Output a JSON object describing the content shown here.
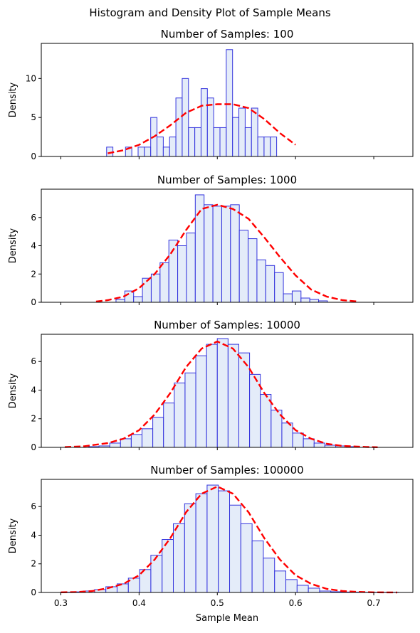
{
  "figure": {
    "suptitle": "Histogram and Density Plot of Sample Means"
  },
  "colors": {
    "bar_fill": "#dbe6f7",
    "bar_edge": "#3333dd",
    "density": "#ff0000",
    "axis": "#000000"
  },
  "chart_data": [
    {
      "type": "bar",
      "title": "Number of Samples: 100",
      "ylabel": "Density",
      "xlabel": "",
      "xlim": [
        0.275,
        0.75
      ],
      "ylim": [
        0,
        14.5
      ],
      "xticks": [
        0.3,
        0.4,
        0.5,
        0.6,
        0.7
      ],
      "xtick_labels_visible": false,
      "yticks": [
        0,
        5,
        10
      ],
      "ytick_labels": [
        "0",
        "5",
        "10"
      ],
      "bin_start": 0.3585,
      "bin_width": 0.00805,
      "values": [
        1.2,
        0,
        0,
        1.2,
        0,
        1.2,
        1.2,
        5.0,
        2.5,
        1.2,
        2.5,
        7.5,
        10.0,
        3.7,
        3.7,
        8.7,
        7.5,
        3.7,
        3.7,
        13.7,
        5.0,
        6.2,
        3.7,
        6.2,
        2.5,
        2.5,
        2.5
      ],
      "density": {
        "style": "dashed",
        "x": [
          0.36,
          0.38,
          0.4,
          0.42,
          0.44,
          0.46,
          0.48,
          0.5,
          0.52,
          0.54,
          0.56,
          0.58,
          0.6
        ],
        "y": [
          0.4,
          0.8,
          1.5,
          2.6,
          4.0,
          5.6,
          6.5,
          6.7,
          6.7,
          6.2,
          4.8,
          3.0,
          1.5
        ]
      }
    },
    {
      "type": "bar",
      "title": "Number of Samples: 1000",
      "ylabel": "Density",
      "xlabel": "",
      "xlim": [
        0.275,
        0.75
      ],
      "ylim": [
        0,
        8.0
      ],
      "xticks": [
        0.3,
        0.4,
        0.5,
        0.6,
        0.7
      ],
      "xtick_labels_visible": false,
      "yticks": [
        0,
        2,
        4,
        6
      ],
      "ytick_labels": [
        "0",
        "2",
        "4",
        "6"
      ],
      "bin_start": 0.3705,
      "bin_width": 0.01126,
      "values": [
        0.2,
        0.8,
        0.4,
        1.7,
        2.0,
        2.8,
        4.4,
        4.0,
        4.9,
        7.6,
        6.9,
        6.8,
        6.8,
        6.9,
        5.1,
        4.5,
        3.0,
        2.6,
        2.1,
        0.6,
        0.8,
        0.3,
        0.2,
        0.1
      ],
      "density": {
        "style": "dashed",
        "x": [
          0.345,
          0.36,
          0.38,
          0.4,
          0.42,
          0.44,
          0.46,
          0.48,
          0.5,
          0.52,
          0.54,
          0.56,
          0.58,
          0.6,
          0.62,
          0.64,
          0.66,
          0.68
        ],
        "y": [
          0.05,
          0.15,
          0.4,
          1.0,
          2.0,
          3.4,
          5.1,
          6.6,
          6.9,
          6.6,
          5.9,
          4.6,
          3.2,
          1.9,
          0.9,
          0.4,
          0.15,
          0.05
        ]
      }
    },
    {
      "type": "bar",
      "title": "Number of Samples: 10000",
      "ylabel": "Density",
      "xlabel": "",
      "xlim": [
        0.275,
        0.75
      ],
      "ylim": [
        0,
        7.9
      ],
      "xticks": [
        0.3,
        0.4,
        0.5,
        0.6,
        0.7
      ],
      "xtick_labels_visible": false,
      "yticks": [
        0,
        2,
        4,
        6
      ],
      "ytick_labels": [
        "0",
        "2",
        "4",
        "6"
      ],
      "bin_start": 0.335,
      "bin_width": 0.01375,
      "values": [
        0.05,
        0.1,
        0.3,
        0.6,
        0.9,
        1.3,
        2.1,
        3.1,
        4.5,
        5.2,
        6.4,
        7.2,
        7.6,
        7.2,
        6.6,
        5.1,
        3.7,
        2.6,
        1.7,
        1.0,
        0.6,
        0.3,
        0.15,
        0.1,
        0.05
      ],
      "density": {
        "style": "dashed",
        "x": [
          0.305,
          0.33,
          0.36,
          0.38,
          0.4,
          0.42,
          0.44,
          0.46,
          0.48,
          0.5,
          0.52,
          0.54,
          0.56,
          0.58,
          0.6,
          0.62,
          0.64,
          0.66,
          0.69,
          0.705
        ],
        "y": [
          0.02,
          0.08,
          0.3,
          0.6,
          1.2,
          2.3,
          3.8,
          5.6,
          6.9,
          7.4,
          6.9,
          5.6,
          3.8,
          2.3,
          1.2,
          0.6,
          0.25,
          0.1,
          0.03,
          0.01
        ]
      }
    },
    {
      "type": "bar",
      "title": "Number of Samples: 100000",
      "ylabel": "Density",
      "xlabel": "Sample Mean",
      "xlim": [
        0.275,
        0.75
      ],
      "ylim": [
        0,
        7.9
      ],
      "xticks": [
        0.3,
        0.4,
        0.5,
        0.6,
        0.7
      ],
      "xtick_labels_visible": true,
      "xtick_labels": [
        "0.3",
        "0.4",
        "0.5",
        "0.6",
        "0.7"
      ],
      "yticks": [
        0,
        2,
        4,
        6
      ],
      "ytick_labels": [
        "0",
        "2",
        "4",
        "6"
      ],
      "bin_start": 0.3,
      "bin_width": 0.01438,
      "values": [
        0.02,
        0.04,
        0.1,
        0.2,
        0.4,
        0.6,
        1.0,
        1.6,
        2.6,
        3.7,
        4.8,
        6.2,
        6.9,
        7.5,
        7.1,
        6.1,
        4.8,
        3.6,
        2.4,
        1.5,
        0.9,
        0.5,
        0.3,
        0.1,
        0.05,
        0.03,
        0.02,
        0.01,
        0.01,
        0.01
      ],
      "density": {
        "style": "dashed",
        "x": [
          0.3,
          0.32,
          0.34,
          0.36,
          0.38,
          0.4,
          0.42,
          0.44,
          0.46,
          0.48,
          0.5,
          0.52,
          0.54,
          0.56,
          0.58,
          0.6,
          0.62,
          0.64,
          0.66,
          0.68,
          0.7,
          0.73
        ],
        "y": [
          0.01,
          0.03,
          0.1,
          0.3,
          0.6,
          1.2,
          2.3,
          3.8,
          5.6,
          6.9,
          7.4,
          6.9,
          5.6,
          3.8,
          2.3,
          1.2,
          0.6,
          0.25,
          0.1,
          0.04,
          0.01,
          0.0
        ]
      }
    }
  ]
}
